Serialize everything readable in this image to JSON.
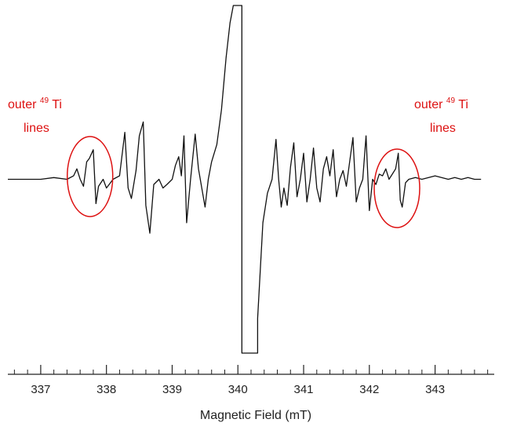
{
  "chart_data": {
    "type": "line",
    "title": "",
    "xlabel": "Magnetic Field (mT)",
    "ylabel": "",
    "xlim": [
      336.5,
      343.9
    ],
    "ylim": [
      -1.0,
      1.0
    ],
    "x_ticks": [
      337,
      338,
      339,
      340,
      341,
      342,
      343
    ],
    "x_tick_labels": [
      "337",
      "338",
      "339",
      "340",
      "341",
      "342",
      "343"
    ],
    "grid": false,
    "legend": "none",
    "series": [
      {
        "color": "#111111",
        "x": [
          336.5,
          336.8,
          337.0,
          337.2,
          337.4,
          337.5,
          337.55,
          337.6,
          337.65,
          337.7,
          337.74,
          337.8,
          337.84,
          337.88,
          337.95,
          338.0,
          338.1,
          338.2,
          338.28,
          338.33,
          338.38,
          338.45,
          338.5,
          338.56,
          338.6,
          338.66,
          338.72,
          338.8,
          338.86,
          338.92,
          339.0,
          339.05,
          339.1,
          339.14,
          339.18,
          339.22,
          339.28,
          339.35,
          339.4,
          339.45,
          339.5,
          339.55,
          339.6,
          339.68,
          339.75,
          339.82,
          339.88,
          339.93,
          339.93,
          340.0,
          340.06,
          340.06,
          340.12,
          340.2,
          340.26,
          340.3,
          340.3,
          340.38,
          340.45,
          340.52,
          340.58,
          340.62,
          340.66,
          340.7,
          340.75,
          340.8,
          340.85,
          340.9,
          340.95,
          341.0,
          341.05,
          341.1,
          341.15,
          341.2,
          341.25,
          341.3,
          341.35,
          341.4,
          341.45,
          341.5,
          341.55,
          341.6,
          341.65,
          341.7,
          341.75,
          341.8,
          341.85,
          341.9,
          341.95,
          342.0,
          342.05,
          342.1,
          342.15,
          342.2,
          342.25,
          342.3,
          342.35,
          342.4,
          342.44,
          342.47,
          342.5,
          342.55,
          342.6,
          342.7,
          342.8,
          343.0,
          343.2,
          343.3,
          343.4,
          343.5,
          343.6,
          343.7
        ],
        "y": [
          0.0,
          0.0,
          0.0,
          0.01,
          0.0,
          0.02,
          0.06,
          0.0,
          -0.04,
          0.1,
          0.12,
          0.17,
          -0.14,
          -0.04,
          0.0,
          -0.05,
          0.0,
          0.02,
          0.27,
          -0.05,
          -0.11,
          0.05,
          0.25,
          0.33,
          -0.15,
          -0.31,
          -0.03,
          0.0,
          -0.05,
          -0.03,
          0.0,
          0.08,
          0.13,
          0.02,
          0.25,
          -0.25,
          0.0,
          0.26,
          0.06,
          -0.05,
          -0.16,
          0.0,
          0.1,
          0.2,
          0.4,
          0.7,
          0.9,
          1.0,
          1.0,
          1.0,
          1.0,
          -1.0,
          -1.0,
          -1.0,
          -1.0,
          -1.0,
          -0.8,
          -0.25,
          -0.08,
          0.0,
          0.23,
          0.0,
          -0.16,
          -0.05,
          -0.15,
          0.07,
          0.21,
          -0.1,
          0.0,
          0.15,
          -0.13,
          0.0,
          0.18,
          -0.05,
          -0.13,
          0.06,
          0.13,
          0.02,
          0.17,
          -0.1,
          0.0,
          0.05,
          -0.04,
          0.1,
          0.24,
          -0.13,
          -0.05,
          0.0,
          0.25,
          -0.18,
          0.0,
          -0.03,
          0.03,
          0.02,
          0.06,
          0.0,
          0.03,
          0.06,
          0.15,
          -0.12,
          -0.16,
          -0.02,
          0.0,
          0.01,
          0.0,
          0.02,
          0.0,
          0.01,
          0.0,
          0.01,
          0.0,
          0.0
        ]
      }
    ],
    "annotations": [
      {
        "text": "outer ",
        "sup": "49",
        "tail": "Ti",
        "line2": "lines",
        "color": "#dd1111",
        "target_x": 337.75
      },
      {
        "text": "outer ",
        "sup": "49",
        "tail": "Ti",
        "line2": "lines",
        "color": "#dd1111",
        "target_x": 342.42
      }
    ]
  }
}
